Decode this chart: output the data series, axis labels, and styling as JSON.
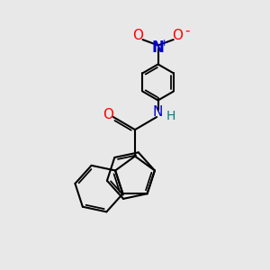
{
  "background_color": "#e8e8e8",
  "bond_color": "#000000",
  "bond_width": 1.5,
  "atom_colors": {
    "O": "#ff0000",
    "N_blue": "#0000cc",
    "N_amide": "#0000cc",
    "H": "#008080"
  },
  "figsize": [
    3.0,
    3.0
  ],
  "dpi": 100
}
